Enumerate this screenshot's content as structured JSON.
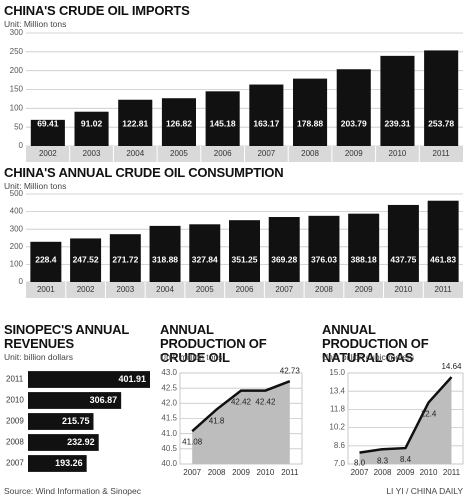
{
  "chart_data": [
    {
      "type": "bar",
      "title": "CHINA'S CRUDE OIL IMPORTS",
      "subtitle": "Unit: Million tons",
      "categories": [
        "2002",
        "2003",
        "2004",
        "2005",
        "2006",
        "2007",
        "2008",
        "2009",
        "2010",
        "2011"
      ],
      "values": [
        69.41,
        91.02,
        122.81,
        126.82,
        145.18,
        163.17,
        178.88,
        203.79,
        239.31,
        253.78
      ],
      "color": "#111111",
      "ylim": [
        0,
        300
      ],
      "yticks": [
        0,
        50,
        100,
        150,
        200,
        250,
        300
      ],
      "grid": true
    },
    {
      "type": "bar",
      "title": "CHINA'S ANNUAL CRUDE OIL CONSUMPTION",
      "subtitle": "Unit: Million tons",
      "categories": [
        "2001",
        "2002",
        "2003",
        "2004",
        "2005",
        "2006",
        "2007",
        "2008",
        "2009",
        "2010",
        "2011"
      ],
      "values": [
        228.4,
        247.52,
        271.72,
        318.88,
        327.84,
        351.25,
        369.28,
        376.03,
        388.18,
        437.75,
        461.83
      ],
      "color": "#111111",
      "ylim": [
        0,
        500
      ],
      "yticks": [
        0,
        100,
        200,
        300,
        400,
        500
      ],
      "grid": true
    },
    {
      "type": "barh",
      "title": "SINOPEC'S ANNUAL REVENUES",
      "subtitle": "Unit: billion dollars",
      "categories": [
        "2011",
        "2010",
        "2009",
        "2008",
        "2007"
      ],
      "values": [
        401.91,
        306.87,
        215.75,
        232.92,
        193.26
      ],
      "color": "#111111"
    },
    {
      "type": "area",
      "title": "ANNUAL PRODUCTION OF CRUDE OIL",
      "subtitle": "Unit: million tons",
      "categories": [
        "2007",
        "2008",
        "2009",
        "2010",
        "2011"
      ],
      "values": [
        41.08,
        41.8,
        42.42,
        42.42,
        42.73
      ],
      "color": "#111111",
      "ylim": [
        40,
        43
      ],
      "yticks": [
        {
          "value": 40,
          "label": "40.0"
        },
        40.5,
        {
          "value": 41,
          "label": "41.0"
        },
        41.5,
        {
          "value": 42,
          "label": "42.0"
        },
        42.5,
        {
          "value": 43,
          "label": "43.0"
        }
      ],
      "grid": true
    },
    {
      "type": "area",
      "title": "ANNUAL PRODUCTION OF NATURAL GAS",
      "subtitle": "Unit: billion cubic meters",
      "categories": [
        "2007",
        "2008",
        "2009",
        "2010",
        "2011"
      ],
      "values": [
        8,
        8.3,
        8.4,
        12.4,
        14.64
      ],
      "value_labels": [
        "8.0",
        "8.3",
        "8.4",
        "12.4",
        "14.64"
      ],
      "color": "#111111",
      "ylim": [
        7,
        15
      ],
      "yticks": [
        {
          "value": 7,
          "label": "7.0"
        },
        8.6,
        10.2,
        11.8,
        13.4,
        {
          "value": 15,
          "label": "15.0"
        }
      ],
      "grid": true
    }
  ],
  "source": "Source: Wind Information & Sinopec",
  "credit": "LI YI / CHINA DAILY"
}
